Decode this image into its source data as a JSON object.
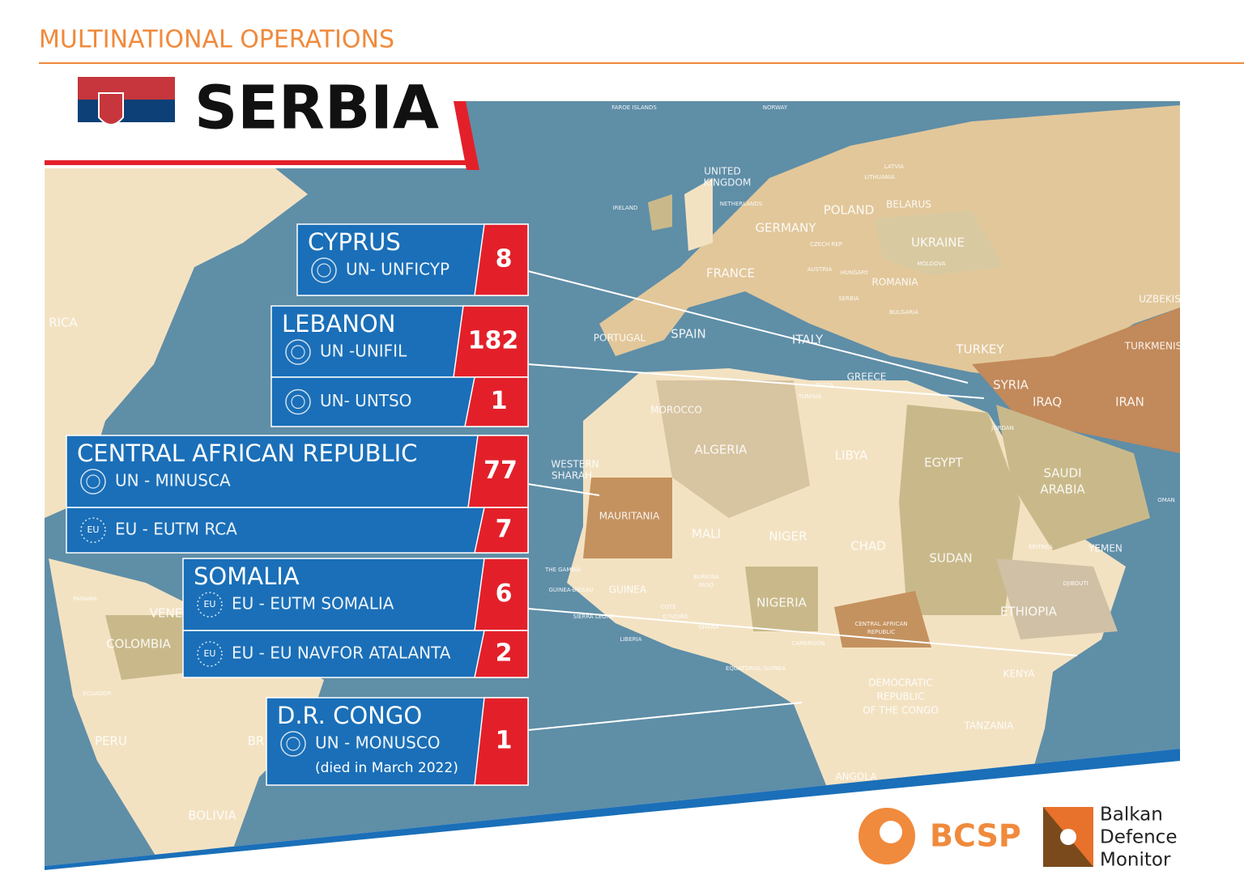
{
  "header": {
    "section": "MULTINATIONAL OPERATIONS",
    "country": "SERBIA"
  },
  "operations": [
    {
      "country": "CYPRUS",
      "missions": [
        {
          "name": "UN- UNFICYP",
          "personnel": 8
        }
      ]
    },
    {
      "country": "LEBANON",
      "missions": [
        {
          "name": "UN -UNIFIL",
          "personnel": 182
        },
        {
          "name": "UN- UNTSO",
          "personnel": 1
        }
      ]
    },
    {
      "country": "CENTRAL AFRICAN REPUBLIC",
      "missions": [
        {
          "name": "UN - MINUSCA",
          "personnel": 77
        },
        {
          "emblem": "EU",
          "name": "EU - EUTM RCA",
          "personnel": 7
        }
      ]
    },
    {
      "country": "SOMALIA",
      "missions": [
        {
          "emblem": "EU",
          "name": "EU - EUTM SOMALIA",
          "personnel": 6
        },
        {
          "emblem": "EU",
          "name": "EU - EU NAVFOR ATALANTA",
          "personnel": 2
        }
      ]
    },
    {
      "country": "D.R. CONGO",
      "missions": [
        {
          "name": "UN - MONUSCO",
          "note": "(died in March 2022)",
          "personnel": 1
        }
      ]
    }
  ],
  "map_labels": [
    "FAROE ISLANDS",
    "NORWAY",
    "UNITED",
    "KINGDOM",
    "IRELAND",
    "NETHERLANDS",
    "GERMANY",
    "POLAND",
    "BELARUS",
    "LATVIA",
    "LITHUANIA",
    "UKRAINE",
    "CZECH REP",
    "FRANCE",
    "AUSTRIA",
    "HUNGARY",
    "MOLDOVA",
    "ROMANIA",
    "SERBIA",
    "BULGARIA",
    "PORTUGAL",
    "SPAIN",
    "ITALY",
    "TURKEY",
    "GREECE",
    "MALTA",
    "TUNISIA",
    "SYRIA",
    "IRAQ",
    "IRAN",
    "UZBEKIS",
    "TURKMENIS",
    "MOROCCO",
    "ALGERIA",
    "LIBYA",
    "EGYPT",
    "JORDAN",
    "SAUDI",
    "ARABIA",
    "WESTERN",
    "SHARAH",
    "MAURITANIA",
    "MALI",
    "NIGER",
    "CHAD",
    "SUDAN",
    "YEMEN",
    "OMAN",
    "ERITREA",
    "DJIBOUTI",
    "THE GAMBIA",
    "GUINEA-BISSAU",
    "GUINEA",
    "BURKINA",
    "FASO",
    "COTE",
    "D'IVOIRE",
    "NIGERIA",
    "ETHIOPIA",
    "SIERRA LEONE",
    "GHANA",
    "CENTRAL AFRICAN",
    "REPUBLIC",
    "CAMEROON",
    "LIBERIA",
    "EQUATORIAL GUINEA",
    "KENYA",
    "DEMOCRATIC",
    "REPUBLIC",
    "OF THE CONGO",
    "TANZANIA",
    "ANGOLA",
    "RICA",
    "PANAMA",
    "VENE",
    "COLOMBIA",
    "ECUADOR",
    "PERU",
    "BR",
    "BOLIVIA"
  ],
  "logos": {
    "bcsp": "BCSP",
    "bdm": [
      "Balkan",
      "Defence",
      "Monitor"
    ]
  }
}
